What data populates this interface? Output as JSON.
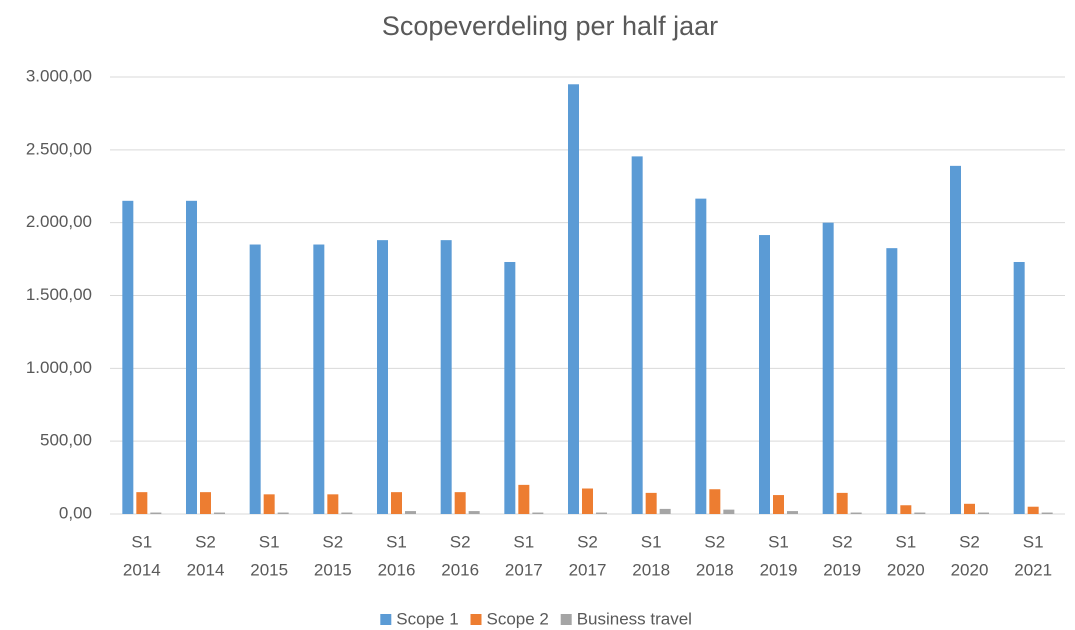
{
  "chart_data": {
    "type": "bar",
    "title": "Scopeverdeling per half jaar",
    "categories": [
      [
        "S1",
        "2014"
      ],
      [
        "S2",
        "2014"
      ],
      [
        "S1",
        "2015"
      ],
      [
        "S2",
        "2015"
      ],
      [
        "S1",
        "2016"
      ],
      [
        "S2",
        "2016"
      ],
      [
        "S1",
        "2017"
      ],
      [
        "S2",
        "2017"
      ],
      [
        "S1",
        "2018"
      ],
      [
        "S2",
        "2018"
      ],
      [
        "S1",
        "2019"
      ],
      [
        "S2",
        "2019"
      ],
      [
        "S1",
        "2020"
      ],
      [
        "S2",
        "2020"
      ],
      [
        "S1",
        "2021"
      ]
    ],
    "series": [
      {
        "name": "Scope 1",
        "color": "#5b9bd5",
        "values": [
          2150,
          2150,
          1850,
          1850,
          1880,
          1880,
          1730,
          2950,
          2455,
          2165,
          1915,
          2000,
          1825,
          2390,
          1730
        ]
      },
      {
        "name": "Scope 2",
        "color": "#ed7d31",
        "values": [
          150,
          150,
          135,
          135,
          150,
          150,
          200,
          175,
          145,
          170,
          130,
          145,
          60,
          70,
          50
        ]
      },
      {
        "name": "Business travel",
        "color": "#a5a5a5",
        "values": [
          10,
          10,
          10,
          10,
          20,
          20,
          10,
          10,
          35,
          30,
          20,
          10,
          10,
          10,
          10
        ]
      }
    ],
    "ylim": [
      0,
      3000
    ],
    "yticks": [
      {
        "value": 0,
        "label": "0,00"
      },
      {
        "value": 500,
        "label": "500,00"
      },
      {
        "value": 1000,
        "label": "1.000,00"
      },
      {
        "value": 1500,
        "label": "1.500,00"
      },
      {
        "value": 2000,
        "label": "2.000,00"
      },
      {
        "value": 2500,
        "label": "2.500,00"
      },
      {
        "value": 3000,
        "label": "3.000,00"
      }
    ],
    "grid": true,
    "legend": "bottom"
  }
}
